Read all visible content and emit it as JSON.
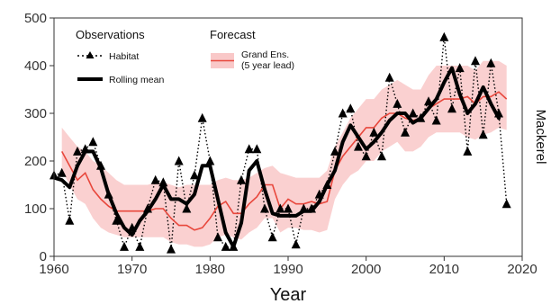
{
  "chart_data": {
    "type": "line",
    "title": "",
    "xlabel": "Year",
    "ylabel": "Mackerel",
    "xlim": [
      1960,
      2020
    ],
    "ylim": [
      0,
      500
    ],
    "x_ticks": [
      1960,
      1970,
      1980,
      1990,
      2000,
      2010,
      2020
    ],
    "y_ticks": [
      0,
      100,
      200,
      300,
      400,
      500
    ],
    "grid": false,
    "legend": {
      "observations_title": "Observations",
      "forecast_title": "Forecast",
      "habitat_label": "Habitat",
      "rolling_label": "Rolling mean",
      "ens_label_line1": "Grand Ens.",
      "ens_label_line2": "(5 year lead)"
    },
    "colors": {
      "observations": "#000000",
      "forecast_line": "#e8473c",
      "forecast_band": "#f9c8c8"
    },
    "series": [
      {
        "name": "Habitat",
        "style": "dotted-triangles",
        "x": [
          1960,
          1961,
          1962,
          1963,
          1964,
          1965,
          1966,
          1967,
          1968,
          1969,
          1970,
          1971,
          1972,
          1973,
          1974,
          1975,
          1976,
          1977,
          1978,
          1979,
          1980,
          1981,
          1982,
          1983,
          1984,
          1985,
          1986,
          1987,
          1988,
          1989,
          1990,
          1991,
          1992,
          1993,
          1994,
          1995,
          1996,
          1997,
          1998,
          1999,
          2000,
          2001,
          2002,
          2003,
          2004,
          2005,
          2006,
          2007,
          2008,
          2009,
          2010,
          2011,
          2012,
          2013,
          2014,
          2015,
          2016,
          2017,
          2018
        ],
        "y": [
          170,
          175,
          75,
          220,
          225,
          240,
          190,
          130,
          75,
          20,
          60,
          20,
          100,
          160,
          155,
          15,
          200,
          100,
          170,
          290,
          200,
          40,
          20,
          20,
          160,
          225,
          225,
          100,
          40,
          100,
          100,
          25,
          100,
          100,
          130,
          150,
          220,
          300,
          310,
          230,
          210,
          260,
          210,
          375,
          320,
          260,
          300,
          290,
          325,
          285,
          460,
          310,
          395,
          220,
          410,
          255,
          405,
          300,
          110
        ]
      },
      {
        "name": "Rolling mean",
        "style": "thick-line",
        "x": [
          1960,
          1961,
          1962,
          1963,
          1964,
          1965,
          1966,
          1967,
          1968,
          1969,
          1970,
          1971,
          1972,
          1973,
          1974,
          1975,
          1976,
          1977,
          1978,
          1979,
          1980,
          1981,
          1982,
          1983,
          1984,
          1985,
          1986,
          1987,
          1988,
          1989,
          1990,
          1991,
          1992,
          1993,
          1994,
          1995,
          1996,
          1997,
          1998,
          1999,
          2000,
          2001,
          2002,
          2003,
          2004,
          2005,
          2006,
          2007,
          2008,
          2009,
          2010,
          2011,
          2012,
          2013,
          2014,
          2015,
          2016,
          2017
        ],
        "y": [
          165,
          160,
          145,
          190,
          220,
          220,
          185,
          130,
          90,
          60,
          45,
          75,
          95,
          120,
          150,
          120,
          120,
          110,
          130,
          190,
          190,
          120,
          50,
          20,
          70,
          180,
          200,
          140,
          90,
          85,
          85,
          85,
          95,
          95,
          115,
          150,
          180,
          240,
          275,
          250,
          225,
          240,
          260,
          285,
          300,
          300,
          280,
          290,
          310,
          330,
          365,
          395,
          340,
          300,
          320,
          355,
          320,
          290
        ]
      },
      {
        "name": "Grand Ens.",
        "style": "line-with-band",
        "x": [
          1961,
          1962,
          1963,
          1964,
          1965,
          1966,
          1967,
          1968,
          1969,
          1970,
          1971,
          1972,
          1973,
          1974,
          1975,
          1976,
          1977,
          1978,
          1979,
          1980,
          1981,
          1982,
          1983,
          1984,
          1985,
          1986,
          1987,
          1988,
          1989,
          1990,
          1991,
          1992,
          1993,
          1994,
          1995,
          1996,
          1997,
          1998,
          1999,
          2000,
          2001,
          2002,
          2003,
          2004,
          2005,
          2006,
          2007,
          2008,
          2009,
          2010,
          2011,
          2012,
          2013,
          2014,
          2015,
          2016,
          2017,
          2018
        ],
        "y": [
          220,
          190,
          160,
          175,
          140,
          120,
          105,
          95,
          95,
          95,
          95,
          95,
          100,
          100,
          80,
          65,
          65,
          55,
          60,
          80,
          105,
          115,
          90,
          90,
          110,
          125,
          150,
          150,
          100,
          120,
          110,
          110,
          115,
          110,
          115,
          180,
          210,
          230,
          250,
          270,
          270,
          290,
          300,
          300,
          290,
          285,
          290,
          310,
          320,
          330,
          330,
          330,
          335,
          320,
          335,
          335,
          345,
          330
        ],
        "upper": [
          270,
          250,
          230,
          220,
          200,
          190,
          175,
          160,
          150,
          150,
          150,
          150,
          155,
          155,
          150,
          145,
          150,
          150,
          150,
          150,
          160,
          165,
          160,
          160,
          165,
          175,
          185,
          190,
          175,
          170,
          165,
          165,
          165,
          165,
          180,
          230,
          260,
          290,
          310,
          330,
          330,
          350,
          360,
          370,
          360,
          350,
          350,
          380,
          400,
          400,
          400,
          400,
          400,
          390,
          410,
          410,
          410,
          400
        ],
        "lower": [
          180,
          150,
          120,
          110,
          80,
          60,
          50,
          45,
          40,
          40,
          40,
          40,
          40,
          40,
          30,
          25,
          25,
          20,
          20,
          25,
          40,
          45,
          40,
          35,
          50,
          60,
          80,
          80,
          50,
          60,
          60,
          55,
          55,
          50,
          55,
          120,
          150,
          170,
          180,
          200,
          200,
          220,
          230,
          240,
          220,
          220,
          230,
          250,
          260,
          260,
          260,
          260,
          250,
          245,
          255,
          260,
          270,
          265
        ]
      }
    ]
  }
}
